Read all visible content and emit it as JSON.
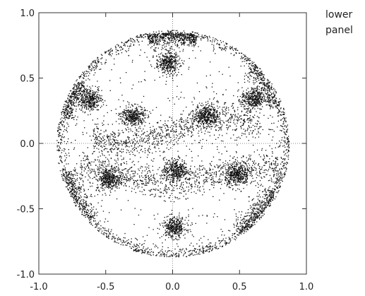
{
  "chart_data": {
    "type": "scatter",
    "title": "",
    "xlabel": "",
    "ylabel": "",
    "xlim": [
      -1.0,
      1.0
    ],
    "ylim": [
      -1.0,
      1.0
    ],
    "xticks": [
      "-1.0",
      "-0.5",
      "0.0",
      "0.5",
      "1.0"
    ],
    "yticks": [
      "1.0",
      "0.5",
      "0.0",
      "-0.5",
      "-1.0"
    ],
    "grid": "dotted zero lines",
    "marker_color": "#111111",
    "structures": {
      "outer_ring_radius": 0.87,
      "dense_clusters": [
        {
          "x": -0.62,
          "y": 0.34
        },
        {
          "x": -0.3,
          "y": 0.21
        },
        {
          "x": -0.04,
          "y": 0.62
        },
        {
          "x": 0.25,
          "y": 0.22
        },
        {
          "x": 0.6,
          "y": 0.34
        },
        {
          "x": -0.48,
          "y": -0.27
        },
        {
          "x": 0.02,
          "y": -0.2
        },
        {
          "x": 0.48,
          "y": -0.24
        },
        {
          "x": 0.01,
          "y": -0.64
        }
      ],
      "upper_band_y_at_center": 0.1,
      "lower_band_y_at_center": -0.24
    }
  },
  "side_note": {
    "line1": "lower",
    "line2": "panel"
  }
}
